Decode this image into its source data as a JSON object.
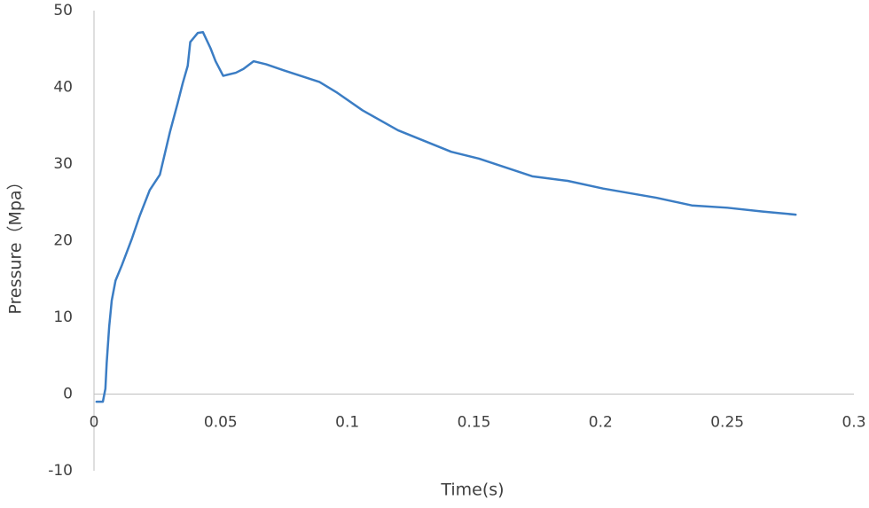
{
  "chart_data": {
    "type": "line",
    "x_label": "Time(s)",
    "y_label": "Pressure（Mpa）",
    "x": [
      0.001,
      0.0035,
      0.0045,
      0.005,
      0.006,
      0.007,
      0.0085,
      0.011,
      0.015,
      0.018,
      0.022,
      0.026,
      0.03,
      0.033,
      0.035,
      0.037,
      0.038,
      0.041,
      0.043,
      0.046,
      0.048,
      0.051,
      0.056,
      0.059,
      0.063,
      0.068,
      0.075,
      0.089,
      0.096,
      0.106,
      0.12,
      0.141,
      0.152,
      0.173,
      0.187,
      0.201,
      0.222,
      0.236,
      0.25,
      0.264,
      0.277
    ],
    "values": [
      -1.0,
      -1.0,
      0.7,
      4,
      8.8,
      12.2,
      14.8,
      16.8,
      20.3,
      23.2,
      26.6,
      28.6,
      34.2,
      37.9,
      40.5,
      42.8,
      45.9,
      47.1,
      47.2,
      45.1,
      43.4,
      41.5,
      41.9,
      42.4,
      43.4,
      43.0,
      42.2,
      40.7,
      39.3,
      37.0,
      34.4,
      31.6,
      30.7,
      28.4,
      27.8,
      26.8,
      25.6,
      24.6,
      24.3,
      23.8,
      23.4
    ],
    "color": "#3b7dc4",
    "xlim": [
      0,
      0.3
    ],
    "xticks": [
      0,
      0.05,
      0.1,
      0.15,
      0.2,
      0.25,
      0.3
    ],
    "ylim": [
      -10,
      50
    ],
    "yticks": [
      -10,
      0,
      10,
      20,
      30,
      40,
      50
    ],
    "grid": false
  }
}
